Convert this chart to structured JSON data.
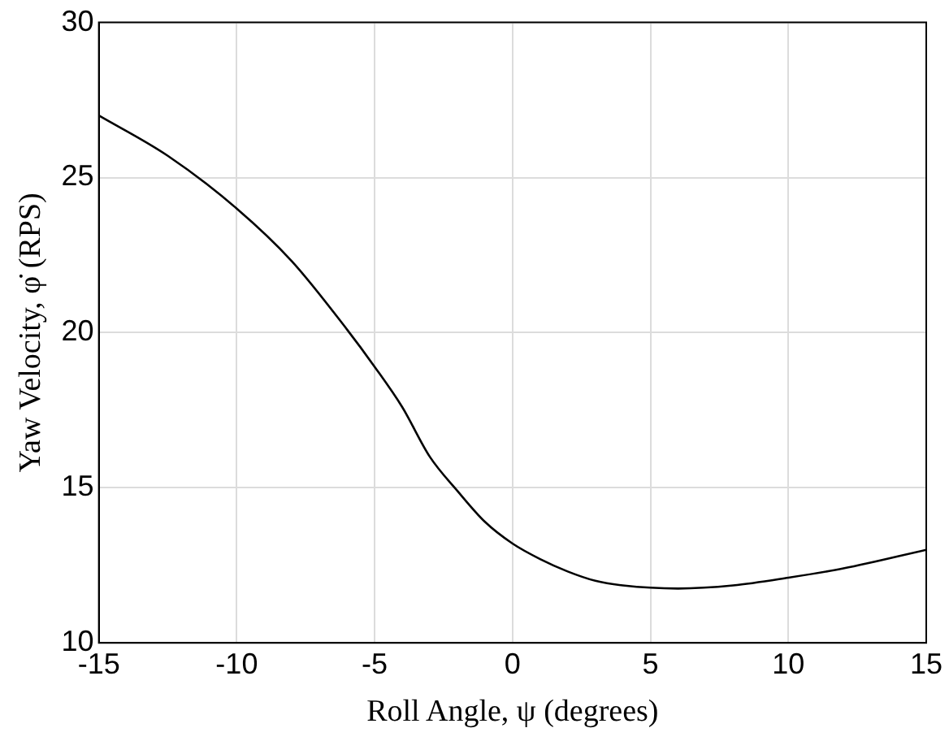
{
  "chart_data": {
    "type": "line",
    "xlabel": "Roll Angle, ψ (degrees)",
    "ylabel": "Yaw Velocity, φ̇ (RPS)",
    "x": [
      -15,
      -12.5,
      -10,
      -8,
      -6,
      -5,
      -4,
      -3,
      -2,
      -1,
      0,
      1,
      2,
      3,
      4,
      6,
      8,
      10,
      12,
      15
    ],
    "series": [
      {
        "color": "#000000",
        "values": [
          27.0,
          25.7,
          24.0,
          22.3,
          20.1,
          18.9,
          17.6,
          16.0,
          14.9,
          13.9,
          13.2,
          12.7,
          12.3,
          12.0,
          11.85,
          11.75,
          11.85,
          12.1,
          12.4,
          13.0
        ]
      }
    ],
    "xlim": [
      -15,
      15
    ],
    "xticks": [
      -15,
      -10,
      -5,
      0,
      5,
      10,
      15
    ],
    "ylim": [
      10,
      30
    ],
    "yticks": [
      10,
      15,
      20,
      25,
      30
    ],
    "grid": true,
    "legend": false,
    "marker": "none",
    "line_style": "solid"
  }
}
